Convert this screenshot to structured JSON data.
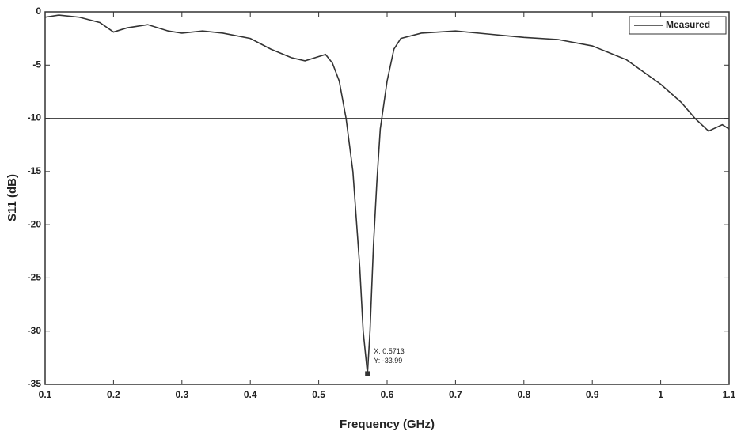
{
  "chart_data": {
    "type": "line",
    "xlabel": "Frequency (GHz)",
    "ylabel": "S11 (dB)",
    "xlim": [
      0.1,
      1.1
    ],
    "ylim": [
      -35,
      0
    ],
    "xticks": [
      0.1,
      0.2,
      0.3,
      0.4,
      0.5,
      0.6,
      0.7,
      0.8,
      0.9,
      1,
      1.1
    ],
    "yticks": [
      0,
      -5,
      -10,
      -15,
      -20,
      -25,
      -30,
      -35
    ],
    "hlines": [
      -10
    ],
    "legend": "upper right",
    "series": [
      {
        "name": "Measured",
        "color": "#333333",
        "x": [
          0.1,
          0.12,
          0.15,
          0.18,
          0.2,
          0.22,
          0.25,
          0.28,
          0.3,
          0.33,
          0.36,
          0.4,
          0.43,
          0.46,
          0.48,
          0.5,
          0.51,
          0.52,
          0.53,
          0.54,
          0.55,
          0.56,
          0.565,
          0.5713,
          0.575,
          0.58,
          0.585,
          0.59,
          0.6,
          0.61,
          0.62,
          0.65,
          0.7,
          0.75,
          0.8,
          0.85,
          0.9,
          0.95,
          1.0,
          1.03,
          1.05,
          1.07,
          1.09,
          1.1
        ],
        "values": [
          -0.5,
          -0.3,
          -0.5,
          -1.0,
          -1.9,
          -1.5,
          -1.2,
          -1.8,
          -2.0,
          -1.8,
          -2.0,
          -2.5,
          -3.5,
          -4.3,
          -4.6,
          -4.2,
          -4.0,
          -4.8,
          -6.5,
          -10,
          -15,
          -24,
          -30,
          -33.99,
          -30,
          -22,
          -16,
          -11,
          -6.5,
          -3.5,
          -2.5,
          -2.0,
          -1.8,
          -2.1,
          -2.4,
          -2.6,
          -3.2,
          -4.5,
          -6.8,
          -8.5,
          -10,
          -11.2,
          -10.6,
          -11
        ]
      }
    ],
    "datatip": {
      "x": 0.5713,
      "y": -33.99,
      "labels": [
        "X: 0.5713",
        "Y: -33.99"
      ]
    }
  }
}
